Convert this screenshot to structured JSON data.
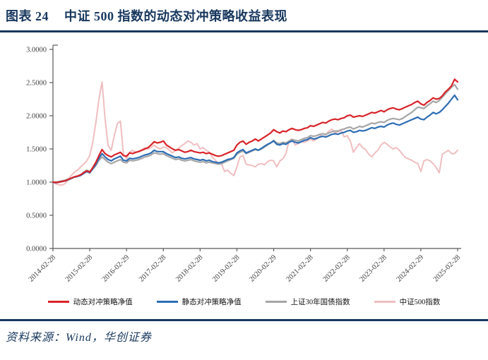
{
  "header": {
    "figure_label": "图表 24",
    "title": "中证 500 指数的动态对冲策略收益表现"
  },
  "footer": {
    "source": "资料来源：Wind，华创证券"
  },
  "colors": {
    "accent_navy": "#17375E",
    "axis": "#595959",
    "tick_text": "#404040"
  },
  "chart_data": {
    "type": "line",
    "title": "",
    "xlabel": "",
    "ylabel": "",
    "ylim": [
      0.0,
      3.0
    ],
    "ytick_labels": [
      "0.0000",
      "0.5000",
      "1.0000",
      "1.5000",
      "2.0000",
      "2.5000",
      "3.0000"
    ],
    "x_tick_labels": [
      "2014-02-28",
      "2015-02-28",
      "2016-02-29",
      "2017-02-28",
      "2018-02-28",
      "2019-02-28",
      "2020-02-29",
      "2021-02-28",
      "2022-02-28",
      "2023-02-28",
      "2024-02-29",
      "2025-02-28"
    ],
    "x_ticks_every_n_points": 12,
    "grid": false,
    "legend_position": "bottom",
    "x_start": "2014-02",
    "x_frequency": "monthly",
    "series": [
      {
        "name": "动态对冲策略净值",
        "color": "#D92329",
        "width": 2.2,
        "values": [
          1.0,
          0.995,
          1.0,
          1.01,
          1.02,
          1.04,
          1.06,
          1.08,
          1.09,
          1.11,
          1.14,
          1.17,
          1.15,
          1.22,
          1.3,
          1.4,
          1.49,
          1.43,
          1.4,
          1.38,
          1.41,
          1.43,
          1.45,
          1.4,
          1.39,
          1.44,
          1.43,
          1.45,
          1.46,
          1.48,
          1.5,
          1.52,
          1.56,
          1.61,
          1.59,
          1.6,
          1.62,
          1.56,
          1.53,
          1.5,
          1.48,
          1.49,
          1.47,
          1.45,
          1.46,
          1.48,
          1.46,
          1.45,
          1.44,
          1.45,
          1.43,
          1.44,
          1.42,
          1.4,
          1.39,
          1.4,
          1.42,
          1.44,
          1.46,
          1.48,
          1.56,
          1.6,
          1.62,
          1.57,
          1.6,
          1.62,
          1.65,
          1.62,
          1.65,
          1.68,
          1.71,
          1.74,
          1.79,
          1.76,
          1.74,
          1.77,
          1.76,
          1.79,
          1.81,
          1.79,
          1.78,
          1.79,
          1.81,
          1.82,
          1.85,
          1.84,
          1.86,
          1.88,
          1.9,
          1.89,
          1.92,
          1.94,
          1.95,
          1.94,
          1.96,
          1.97,
          2.0,
          2.01,
          1.98,
          1.99,
          2.0,
          1.99,
          2.01,
          2.03,
          2.05,
          2.04,
          2.06,
          2.08,
          2.06,
          2.09,
          2.11,
          2.12,
          2.1,
          2.09,
          2.11,
          2.13,
          2.15,
          2.17,
          2.2,
          2.22,
          2.18,
          2.16,
          2.2,
          2.23,
          2.27,
          2.25,
          2.26,
          2.3,
          2.36,
          2.4,
          2.45,
          2.55,
          2.51
        ]
      },
      {
        "name": "静态对冲策略净值",
        "color": "#2D6DB4",
        "width": 2.2,
        "values": [
          1.0,
          0.99,
          1.0,
          1.008,
          1.018,
          1.035,
          1.055,
          1.075,
          1.085,
          1.1,
          1.13,
          1.16,
          1.14,
          1.2,
          1.27,
          1.36,
          1.43,
          1.38,
          1.34,
          1.32,
          1.35,
          1.37,
          1.39,
          1.33,
          1.32,
          1.36,
          1.35,
          1.36,
          1.37,
          1.39,
          1.41,
          1.42,
          1.44,
          1.48,
          1.46,
          1.46,
          1.46,
          1.43,
          1.41,
          1.39,
          1.37,
          1.38,
          1.36,
          1.35,
          1.36,
          1.37,
          1.35,
          1.34,
          1.33,
          1.34,
          1.32,
          1.33,
          1.31,
          1.3,
          1.29,
          1.3,
          1.32,
          1.34,
          1.35,
          1.37,
          1.44,
          1.47,
          1.49,
          1.44,
          1.46,
          1.48,
          1.5,
          1.48,
          1.51,
          1.54,
          1.57,
          1.59,
          1.62,
          1.57,
          1.56,
          1.58,
          1.57,
          1.6,
          1.62,
          1.6,
          1.59,
          1.61,
          1.63,
          1.64,
          1.67,
          1.65,
          1.66,
          1.68,
          1.69,
          1.68,
          1.7,
          1.72,
          1.73,
          1.72,
          1.74,
          1.75,
          1.77,
          1.78,
          1.75,
          1.76,
          1.78,
          1.77,
          1.78,
          1.8,
          1.82,
          1.81,
          1.83,
          1.84,
          1.83,
          1.86,
          1.88,
          1.89,
          1.87,
          1.86,
          1.88,
          1.9,
          1.92,
          1.94,
          1.96,
          1.98,
          1.95,
          1.94,
          1.98,
          2.01,
          2.05,
          2.03,
          2.05,
          2.09,
          2.14,
          2.19,
          2.25,
          2.31,
          2.24
        ]
      },
      {
        "name": "上证30年国债指数",
        "color": "#A6A6A6",
        "width": 2.2,
        "values": [
          1.0,
          1.0,
          1.01,
          1.02,
          1.03,
          1.045,
          1.06,
          1.08,
          1.09,
          1.11,
          1.15,
          1.18,
          1.16,
          1.2,
          1.25,
          1.33,
          1.38,
          1.34,
          1.3,
          1.28,
          1.3,
          1.32,
          1.34,
          1.3,
          1.29,
          1.33,
          1.32,
          1.33,
          1.34,
          1.36,
          1.38,
          1.39,
          1.41,
          1.44,
          1.43,
          1.42,
          1.43,
          1.4,
          1.38,
          1.36,
          1.34,
          1.35,
          1.33,
          1.32,
          1.33,
          1.34,
          1.32,
          1.31,
          1.3,
          1.31,
          1.29,
          1.3,
          1.29,
          1.28,
          1.27,
          1.28,
          1.3,
          1.32,
          1.34,
          1.36,
          1.42,
          1.45,
          1.47,
          1.43,
          1.45,
          1.47,
          1.49,
          1.48,
          1.5,
          1.53,
          1.56,
          1.59,
          1.63,
          1.59,
          1.58,
          1.6,
          1.59,
          1.62,
          1.64,
          1.63,
          1.62,
          1.64,
          1.66,
          1.67,
          1.7,
          1.69,
          1.7,
          1.72,
          1.73,
          1.72,
          1.74,
          1.76,
          1.77,
          1.77,
          1.79,
          1.8,
          1.82,
          1.83,
          1.8,
          1.82,
          1.84,
          1.83,
          1.85,
          1.87,
          1.89,
          1.88,
          1.9,
          1.91,
          1.9,
          1.93,
          1.95,
          1.96,
          1.95,
          1.94,
          1.96,
          1.99,
          2.02,
          2.05,
          2.09,
          2.13,
          2.12,
          2.11,
          2.15,
          2.18,
          2.22,
          2.2,
          2.23,
          2.28,
          2.33,
          2.38,
          2.43,
          2.47,
          2.4
        ]
      },
      {
        "name": "中证500指数",
        "color": "#F0BEC0",
        "width": 2.0,
        "values": [
          1.0,
          0.97,
          0.96,
          0.955,
          0.98,
          1.05,
          1.1,
          1.15,
          1.18,
          1.23,
          1.27,
          1.32,
          1.4,
          1.6,
          1.9,
          2.25,
          2.51,
          1.95,
          1.55,
          1.48,
          1.7,
          1.88,
          1.92,
          1.42,
          1.35,
          1.45,
          1.48,
          1.44,
          1.47,
          1.49,
          1.52,
          1.5,
          1.52,
          1.56,
          1.52,
          1.5,
          1.53,
          1.52,
          1.48,
          1.44,
          1.48,
          1.51,
          1.55,
          1.58,
          1.62,
          1.6,
          1.56,
          1.58,
          1.5,
          1.52,
          1.48,
          1.45,
          1.38,
          1.33,
          1.28,
          1.27,
          1.16,
          1.18,
          1.13,
          1.1,
          1.23,
          1.38,
          1.4,
          1.27,
          1.26,
          1.25,
          1.23,
          1.27,
          1.28,
          1.26,
          1.31,
          1.33,
          1.32,
          1.23,
          1.32,
          1.35,
          1.43,
          1.62,
          1.65,
          1.56,
          1.58,
          1.61,
          1.6,
          1.62,
          1.65,
          1.62,
          1.65,
          1.69,
          1.73,
          1.71,
          1.77,
          1.8,
          1.74,
          1.76,
          1.78,
          1.68,
          1.7,
          1.62,
          1.45,
          1.52,
          1.58,
          1.52,
          1.49,
          1.42,
          1.38,
          1.44,
          1.48,
          1.56,
          1.6,
          1.57,
          1.53,
          1.5,
          1.52,
          1.48,
          1.42,
          1.37,
          1.35,
          1.33,
          1.3,
          1.28,
          1.16,
          1.32,
          1.34,
          1.32,
          1.28,
          1.22,
          1.14,
          1.42,
          1.45,
          1.48,
          1.43,
          1.43,
          1.48
        ]
      }
    ]
  }
}
